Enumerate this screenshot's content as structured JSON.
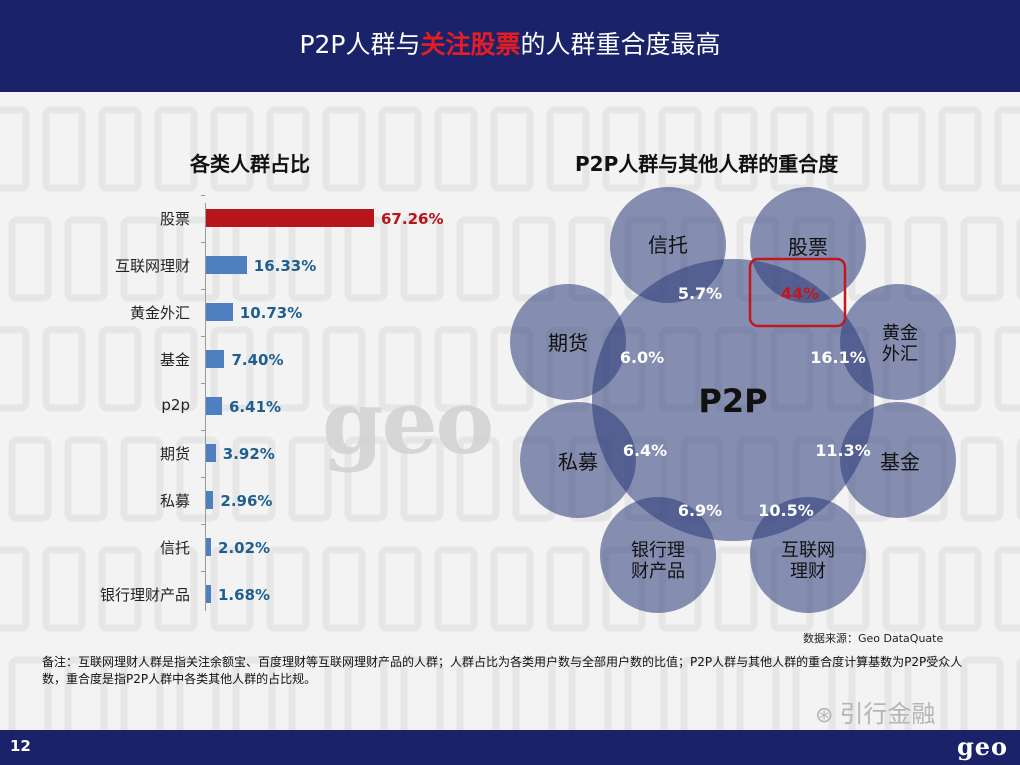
{
  "header": {
    "title_pre": "P2P人群与",
    "title_highlight": "关注股票",
    "title_post": "的人群重合度最高"
  },
  "left_title": "各类人群占比",
  "right_title": "P2P人群与其他人群的重合度",
  "chart_data": [
    {
      "type": "bar",
      "orientation": "horizontal",
      "title": "各类人群占比",
      "categories": [
        "股票",
        "互联网理财",
        "黄金外汇",
        "基金",
        "p2p",
        "期货",
        "私募",
        "信托",
        "银行理财产品"
      ],
      "values": [
        67.26,
        16.33,
        10.73,
        7.4,
        6.41,
        3.92,
        2.96,
        2.02,
        1.68
      ],
      "labels": [
        "67.26%",
        "16.33%",
        "10.73%",
        "7.40%",
        "6.41%",
        "3.92%",
        "2.96%",
        "2.02%",
        "1.68%"
      ],
      "unit": "%",
      "highlight": "股票",
      "highlight_color": "#b8141c",
      "bar_color": "#4f7fc0",
      "value_color": "#1f5f8f",
      "xlim": [
        0,
        100
      ]
    },
    {
      "type": "venn",
      "title": "P2P人群与其他人群的重合度",
      "center": "P2P",
      "groups": [
        "信托",
        "股票",
        "黄金外汇",
        "基金",
        "互联网理财",
        "银行理财产品",
        "私募",
        "期货"
      ],
      "satellite_labels": [
        "信托",
        "股票",
        "黄金\n外汇",
        "基金",
        "互联网\n理财",
        "银行理\n财产品",
        "私募",
        "期货"
      ],
      "overlap_labels": [
        "5.7%",
        "44%",
        "16.1%",
        "11.3%",
        "10.5%",
        "6.9%",
        "6.4%",
        "6.0%"
      ],
      "overlap_values": [
        5.7,
        44,
        16.1,
        11.3,
        10.5,
        6.9,
        6.4,
        6.0
      ],
      "highlight": "股票",
      "highlight_color": "#c4161c",
      "circle_color": "#2a3a78"
    }
  ],
  "source": "数据来源：Geo DataQuate",
  "note": "备注：互联网理财人群是指关注余额宝、百度理财等互联网理财产品的人群；人群占比为各类用户数与全部用户数的比值；P2P人群与其他人群的重合度计算基数为P2P受众人数，重合度是指P2P人群中各类其他人群的占比规。",
  "footer": {
    "page": "12",
    "logo": "geo"
  },
  "watermark": "geo",
  "wechat": "引行金融"
}
